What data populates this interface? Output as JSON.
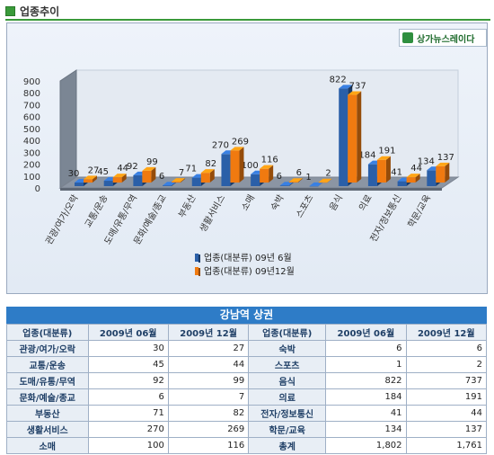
{
  "section_title": "업종추이",
  "brand": {
    "name": "상가뉴스레이다"
  },
  "chart_data": {
    "type": "bar",
    "categories": [
      "관광/여가/오락",
      "교통/운송",
      "도매/유통/무역",
      "문화/예술/종교",
      "부동산",
      "생활서비스",
      "소매",
      "숙박",
      "스포츠",
      "음식",
      "의료",
      "전자/정보통신",
      "학문/교육"
    ],
    "series": [
      {
        "name": "업종(대분류) 09년 6월",
        "color": "#2a5fa8",
        "values": [
          30,
          45,
          92,
          6,
          71,
          270,
          100,
          6,
          1,
          822,
          184,
          41,
          134
        ]
      },
      {
        "name": "업종(대분류) 09년12월",
        "color": "#f07a10",
        "values": [
          27,
          44,
          99,
          7,
          82,
          269,
          116,
          6,
          2,
          737,
          191,
          44,
          137
        ]
      }
    ],
    "yticks": [
      "0",
      "100",
      "200",
      "300",
      "400",
      "500",
      "600",
      "700",
      "800",
      "900"
    ],
    "ylim": [
      0,
      900
    ],
    "grid": false,
    "legend": "bottom"
  },
  "table": {
    "title": "강남역 상권",
    "headers": [
      "업종(대분류)",
      "2009년 06월",
      "2009년 12월",
      "업종(대분류)",
      "2009년 06월",
      "2009년 12월"
    ],
    "rows": [
      [
        "관광/여가/오락",
        "30",
        "27",
        "숙박",
        "6",
        "6"
      ],
      [
        "교통/운송",
        "45",
        "44",
        "스포츠",
        "1",
        "2"
      ],
      [
        "도매/유통/무역",
        "92",
        "99",
        "음식",
        "822",
        "737"
      ],
      [
        "문화/예술/종교",
        "6",
        "7",
        "의료",
        "184",
        "191"
      ],
      [
        "부동산",
        "71",
        "82",
        "전자/정보통신",
        "41",
        "44"
      ],
      [
        "생활서비스",
        "270",
        "269",
        "학문/교육",
        "134",
        "137"
      ],
      [
        "소매",
        "100",
        "116",
        "총계",
        "1,802",
        "1,761"
      ]
    ]
  }
}
